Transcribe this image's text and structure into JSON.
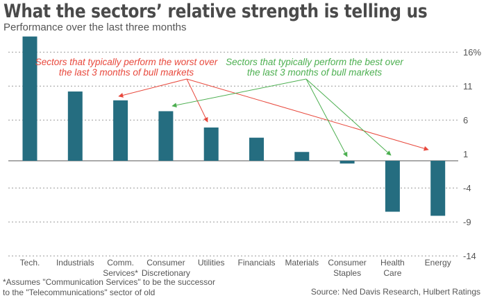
{
  "header": {
    "title": "What the sectors’ relative strength is telling us",
    "subtitle": "Performance over the last three months"
  },
  "footer": {
    "footnote_line1": "*Assumes \"Communication Services\" to be the successor",
    "footnote_line2": "to the \"Telecommunications\" sector of old",
    "source": "Source: Ned Davis Research, Hulbert Ratings"
  },
  "colors": {
    "bar": "#256d80",
    "worst_annotation": "#e8483c",
    "best_annotation": "#4caf50",
    "grid": "#999999",
    "baseline": "#aaaaaa",
    "text": "#555555"
  },
  "chart_data": {
    "type": "bar",
    "title": "What the sectors’ relative strength is telling us",
    "subtitle": "Performance over the last three months",
    "xlabel": "",
    "ylabel": "",
    "unit": "%",
    "categories": [
      [
        "Tech."
      ],
      [
        "Industrials"
      ],
      [
        "Comm.",
        "Services*"
      ],
      [
        "Consumer",
        "Discretionary"
      ],
      [
        "Utilities"
      ],
      [
        "Financials"
      ],
      [
        "Materials"
      ],
      [
        "Consumer",
        "Staples"
      ],
      [
        "Health",
        "Care"
      ],
      [
        "Energy"
      ]
    ],
    "values": [
      18.3,
      10.2,
      8.9,
      7.3,
      4.9,
      3.4,
      1.3,
      -0.4,
      -7.5,
      -8.1
    ],
    "ylim": [
      -14,
      18
    ],
    "yticks": [
      16,
      11,
      6,
      1,
      -4,
      -9,
      -14
    ],
    "ytick_labels": [
      "16%",
      "11",
      "6",
      "1",
      "-4",
      "-9",
      "-14"
    ],
    "grid": true,
    "axis_position": "right",
    "annotations": [
      {
        "name": "worst",
        "lines": [
          "Sectors that typically perform the worst over",
          "the last 3 months of bull markets"
        ],
        "targets": [
          "Comm. Services*",
          "Utilities",
          "Energy"
        ]
      },
      {
        "name": "best",
        "lines": [
          "Sectors that typically perform the best over",
          "the last 3 months of bull markets"
        ],
        "targets": [
          "Consumer Discretionary",
          "Consumer Staples",
          "Health Care"
        ]
      }
    ]
  }
}
